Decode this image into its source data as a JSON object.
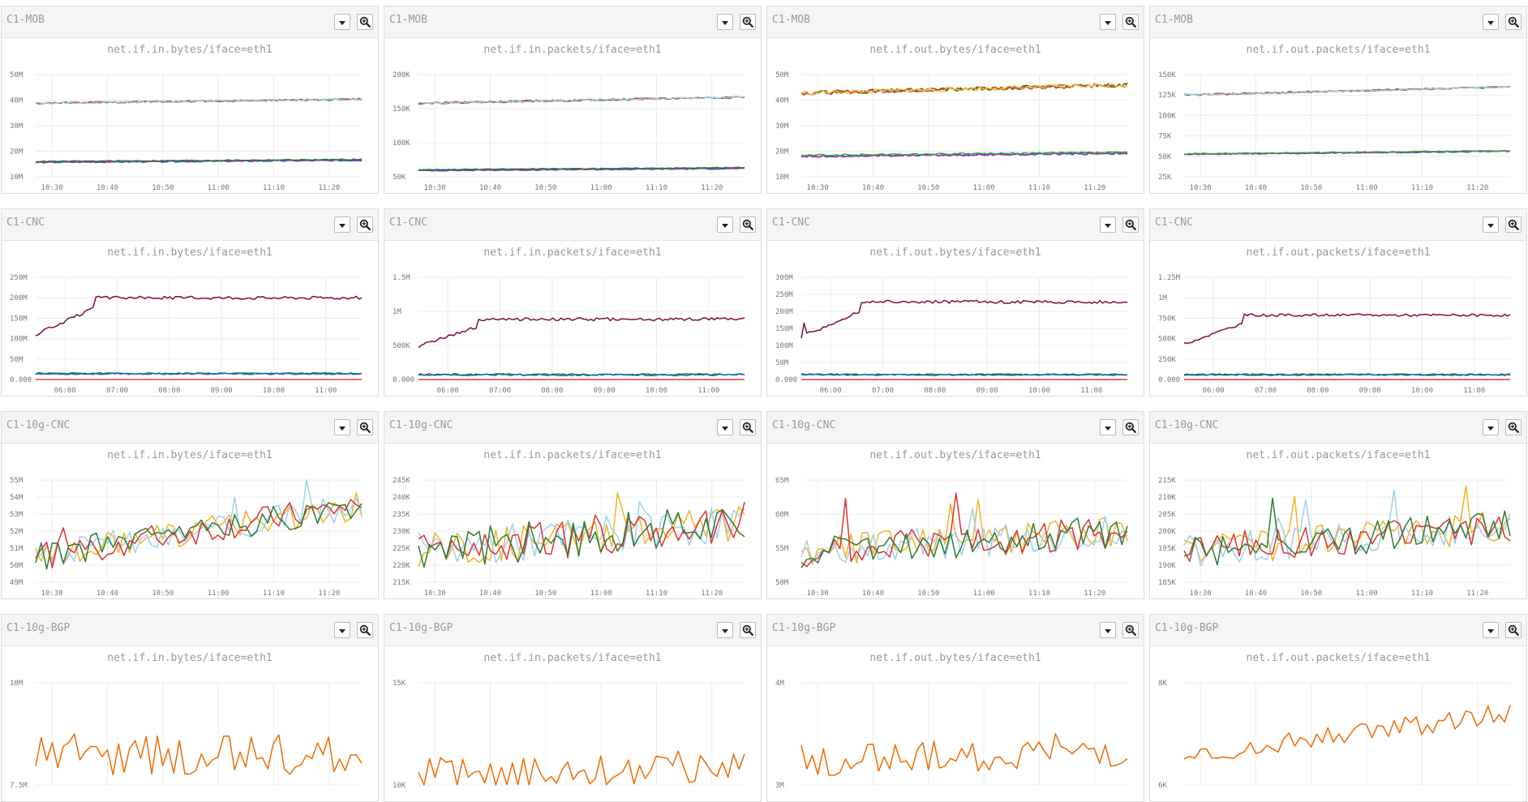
{
  "ticks_a": {
    "x": [
      "10:30",
      "10:40",
      "10:50",
      "11:00",
      "11:10",
      "11:20"
    ],
    "x_pos": [
      0.05,
      0.22,
      0.39,
      0.56,
      0.73,
      0.9
    ]
  },
  "ticks_b": {
    "x": [
      "06:00",
      "07:00",
      "08:00",
      "09:00",
      "10:00",
      "11:00"
    ],
    "x_pos": [
      0.09,
      0.25,
      0.41,
      0.57,
      0.73,
      0.89
    ]
  },
  "rows": [
    {
      "name": "C1-MOB",
      "ticks": "a",
      "panels": [
        {
          "metric": "net.if.in.bytes/iface=eth1",
          "y": [
            "50M",
            "40M",
            "30M",
            "20M",
            "10M"
          ],
          "series": [
            {
              "color": "#2e7d32",
              "base": 0.72,
              "trend": 0.04,
              "noise": 0.008,
              "seed": 11,
              "type": "flat"
            },
            {
              "color": "#d33",
              "base": 0.72,
              "trend": 0.04,
              "noise": 0.008,
              "seed": 12,
              "type": "flat"
            },
            {
              "color": "#9ed0f0",
              "base": 0.72,
              "trend": 0.04,
              "noise": 0.01,
              "seed": 13,
              "type": "flat"
            },
            {
              "color": "#1565c0",
              "base": 0.14,
              "trend": 0.02,
              "noise": 0.006,
              "seed": 14,
              "type": "flat"
            },
            {
              "color": "#c020c0",
              "base": 0.145,
              "trend": 0.02,
              "noise": 0.006,
              "seed": 15,
              "type": "flat"
            },
            {
              "color": "#2e7d32",
              "base": 0.15,
              "trend": 0.02,
              "noise": 0.005,
              "seed": 16,
              "type": "flat"
            }
          ]
        },
        {
          "metric": "net.if.in.packets/iface=eth1",
          "y": [
            "200K",
            "150K",
            "100K",
            "50K"
          ],
          "series": [
            {
              "color": "#2e7d32",
              "base": 0.72,
              "trend": 0.06,
              "noise": 0.008,
              "seed": 21,
              "type": "flat"
            },
            {
              "color": "#d33",
              "base": 0.72,
              "trend": 0.06,
              "noise": 0.01,
              "seed": 22,
              "type": "flat"
            },
            {
              "color": "#9ed0f0",
              "base": 0.72,
              "trend": 0.06,
              "noise": 0.008,
              "seed": 23,
              "type": "flat"
            },
            {
              "color": "#1565c0",
              "base": 0.06,
              "trend": 0.02,
              "noise": 0.005,
              "seed": 24,
              "type": "flat"
            },
            {
              "color": "#c020c0",
              "base": 0.065,
              "trend": 0.02,
              "noise": 0.005,
              "seed": 25,
              "type": "flat"
            },
            {
              "color": "#2e7d32",
              "base": 0.07,
              "trend": 0.02,
              "noise": 0.004,
              "seed": 26,
              "type": "flat"
            }
          ]
        },
        {
          "metric": "net.if.out.bytes/iface=eth1",
          "y": [
            "50M",
            "40M",
            "30M",
            "20M",
            "10M"
          ],
          "series": [
            {
              "color": "#2e7d32",
              "base": 0.82,
              "trend": 0.08,
              "noise": 0.02,
              "seed": 31,
              "type": "flat"
            },
            {
              "color": "#d33",
              "base": 0.82,
              "trend": 0.08,
              "noise": 0.02,
              "seed": 32,
              "type": "flat"
            },
            {
              "color": "#f0c030",
              "base": 0.82,
              "trend": 0.08,
              "noise": 0.02,
              "seed": 33,
              "type": "flat"
            },
            {
              "color": "#1565c0",
              "base": 0.2,
              "trend": 0.03,
              "noise": 0.01,
              "seed": 34,
              "type": "flat"
            },
            {
              "color": "#c020c0",
              "base": 0.2,
              "trend": 0.03,
              "noise": 0.01,
              "seed": 35,
              "type": "flat"
            },
            {
              "color": "#3a3",
              "base": 0.21,
              "trend": 0.03,
              "noise": 0.008,
              "seed": 36,
              "type": "flat"
            }
          ]
        },
        {
          "metric": "net.if.out.packets/iface=eth1",
          "y": [
            "150K",
            "125K",
            "100K",
            "75K",
            "50K",
            "25K"
          ],
          "series": [
            {
              "color": "#2e7d32",
              "base": 0.8,
              "trend": 0.08,
              "noise": 0.008,
              "seed": 41,
              "type": "flat"
            },
            {
              "color": "#d33",
              "base": 0.8,
              "trend": 0.08,
              "noise": 0.008,
              "seed": 42,
              "type": "flat"
            },
            {
              "color": "#9ed0f0",
              "base": 0.8,
              "trend": 0.08,
              "noise": 0.008,
              "seed": 43,
              "type": "flat"
            },
            {
              "color": "#1565c0",
              "base": 0.22,
              "trend": 0.03,
              "noise": 0.006,
              "seed": 44,
              "type": "flat"
            },
            {
              "color": "#c020c0",
              "base": 0.22,
              "trend": 0.03,
              "noise": 0.006,
              "seed": 45,
              "type": "flat"
            },
            {
              "color": "#3a3",
              "base": 0.225,
              "trend": 0.03,
              "noise": 0.005,
              "seed": 46,
              "type": "flat"
            }
          ]
        }
      ]
    },
    {
      "name": "C1-CNC",
      "ticks": "b",
      "panels": [
        {
          "metric": "net.if.in.bytes/iface=eth1",
          "y": [
            "250M",
            "200M",
            "150M",
            "100M",
            "50M",
            "0.000"
          ],
          "series": [
            {
              "color": "#7b1040",
              "base": 0.8,
              "noise": 0.015,
              "seed": 51,
              "type": "ramp"
            },
            {
              "color": "#2e7d32",
              "base": 0.06,
              "noise": 0.006,
              "seed": 52,
              "type": "flat"
            },
            {
              "color": "#1565c0",
              "base": 0.055,
              "noise": 0.006,
              "seed": 53,
              "type": "flat"
            },
            {
              "color": "#e53935",
              "base": 0.0,
              "noise": 0.0,
              "seed": 54,
              "type": "flat"
            }
          ]
        },
        {
          "metric": "net.if.in.packets/iface=eth1",
          "y": [
            "1.5M",
            "1M",
            "500K",
            "0.000"
          ],
          "series": [
            {
              "color": "#7b1040",
              "base": 0.59,
              "noise": 0.015,
              "seed": 61,
              "type": "ramp"
            },
            {
              "color": "#2e7d32",
              "base": 0.05,
              "noise": 0.008,
              "seed": 62,
              "type": "flat"
            },
            {
              "color": "#1565c0",
              "base": 0.045,
              "noise": 0.008,
              "seed": 63,
              "type": "flat"
            },
            {
              "color": "#e53935",
              "base": 0.0,
              "noise": 0.0,
              "seed": 64,
              "type": "flat"
            }
          ]
        },
        {
          "metric": "net.if.out.bytes/iface=eth1",
          "y": [
            "300M",
            "250M",
            "200M",
            "150M",
            "100M",
            "50M",
            "0.000"
          ],
          "series": [
            {
              "color": "#7b1040",
              "base": 0.76,
              "noise": 0.015,
              "seed": 71,
              "type": "ramp"
            },
            {
              "color": "#2e7d32",
              "base": 0.05,
              "noise": 0.006,
              "seed": 72,
              "type": "flat"
            },
            {
              "color": "#1565c0",
              "base": 0.045,
              "noise": 0.006,
              "seed": 73,
              "type": "flat"
            },
            {
              "color": "#e53935",
              "base": 0.0,
              "noise": 0.0,
              "seed": 74,
              "type": "flat"
            }
          ]
        },
        {
          "metric": "net.if.out.packets/iface=eth1",
          "y": [
            "1.25M",
            "1M",
            "750K",
            "500K",
            "250K",
            "0.000"
          ],
          "series": [
            {
              "color": "#7b1040",
              "base": 0.63,
              "noise": 0.012,
              "seed": 81,
              "type": "ramp"
            },
            {
              "color": "#2e7d32",
              "base": 0.05,
              "noise": 0.006,
              "seed": 82,
              "type": "flat"
            },
            {
              "color": "#1565c0",
              "base": 0.045,
              "noise": 0.006,
              "seed": 83,
              "type": "flat"
            },
            {
              "color": "#e53935",
              "base": 0.0,
              "noise": 0.0,
              "seed": 84,
              "type": "flat"
            }
          ]
        }
      ]
    },
    {
      "name": "C1-10g-CNC",
      "ticks": "a",
      "panels": [
        {
          "metric": "net.if.in.bytes/iface=eth1",
          "y": [
            "55M",
            "54M",
            "53M",
            "52M",
            "51M",
            "50M",
            "49M"
          ],
          "series": [
            {
              "color": "#f0b429",
              "base": 0.25,
              "trend": 0.5,
              "noise": 0.07,
              "seed": 91,
              "type": "noisy"
            },
            {
              "color": "#9ed0f0",
              "base": 0.25,
              "trend": 0.5,
              "noise": 0.07,
              "seed": 92,
              "type": "noisy"
            },
            {
              "color": "#d33",
              "base": 0.25,
              "trend": 0.5,
              "noise": 0.07,
              "seed": 93,
              "type": "noisy"
            },
            {
              "color": "#2e7d32",
              "base": 0.25,
              "trend": 0.5,
              "noise": 0.07,
              "seed": 94,
              "type": "noisy"
            }
          ]
        },
        {
          "metric": "net.if.in.packets/iface=eth1",
          "y": [
            "245K",
            "240K",
            "235K",
            "230K",
            "225K",
            "220K",
            "215K"
          ],
          "series": [
            {
              "color": "#f0b429",
              "base": 0.3,
              "trend": 0.3,
              "noise": 0.1,
              "seed": 101,
              "type": "noisy"
            },
            {
              "color": "#9ed0f0",
              "base": 0.3,
              "trend": 0.3,
              "noise": 0.1,
              "seed": 102,
              "type": "noisy"
            },
            {
              "color": "#d33",
              "base": 0.3,
              "trend": 0.3,
              "noise": 0.1,
              "seed": 103,
              "type": "noisy"
            },
            {
              "color": "#2e7d32",
              "base": 0.3,
              "trend": 0.3,
              "noise": 0.1,
              "seed": 104,
              "type": "noisy"
            }
          ]
        },
        {
          "metric": "net.if.out.bytes/iface=eth1",
          "y": [
            "65M",
            "60M",
            "55M",
            "50M"
          ],
          "series": [
            {
              "color": "#f0b429",
              "base": 0.3,
              "trend": 0.2,
              "noise": 0.08,
              "seed": 111,
              "type": "noisy"
            },
            {
              "color": "#9ed0f0",
              "base": 0.3,
              "trend": 0.2,
              "noise": 0.08,
              "seed": 112,
              "type": "noisy"
            },
            {
              "color": "#d33",
              "base": 0.3,
              "trend": 0.2,
              "noise": 0.08,
              "seed": 113,
              "type": "noisy"
            },
            {
              "color": "#2e7d32",
              "base": 0.3,
              "trend": 0.2,
              "noise": 0.08,
              "seed": 114,
              "type": "noisy"
            }
          ]
        },
        {
          "metric": "net.if.out.packets/iface=eth1",
          "y": [
            "215K",
            "210K",
            "205K",
            "200K",
            "195K",
            "190K",
            "185K"
          ],
          "series": [
            {
              "color": "#f0b429",
              "base": 0.3,
              "trend": 0.25,
              "noise": 0.08,
              "seed": 121,
              "type": "noisy"
            },
            {
              "color": "#9ed0f0",
              "base": 0.3,
              "trend": 0.25,
              "noise": 0.08,
              "seed": 122,
              "type": "noisy"
            },
            {
              "color": "#d33",
              "base": 0.3,
              "trend": 0.25,
              "noise": 0.08,
              "seed": 123,
              "type": "noisy"
            },
            {
              "color": "#2e7d32",
              "base": 0.3,
              "trend": 0.25,
              "noise": 0.08,
              "seed": 124,
              "type": "noisy"
            }
          ]
        }
      ]
    },
    {
      "name": "C1-10g-BGP",
      "ticks": "none",
      "panels": [
        {
          "metric": "net.if.in.bytes/iface=eth1",
          "y": [
            "10M",
            "7.5M"
          ],
          "series": [
            {
              "color": "#ef6c00",
              "base": 0.3,
              "trend": 0.0,
              "noise": 0.1,
              "seed": 131,
              "type": "noisy"
            }
          ]
        },
        {
          "metric": "net.if.in.packets/iface=eth1",
          "y": [
            "15K",
            "10K"
          ],
          "series": [
            {
              "color": "#ef6c00",
              "base": 0.1,
              "trend": 0.1,
              "noise": 0.08,
              "seed": 141,
              "type": "noisy"
            }
          ]
        },
        {
          "metric": "net.if.out.bytes/iface=eth1",
          "y": [
            "4M",
            "3M"
          ],
          "series": [
            {
              "color": "#ef6c00",
              "base": 0.25,
              "trend": 0.05,
              "noise": 0.08,
              "seed": 151,
              "type": "noisy"
            }
          ]
        },
        {
          "metric": "net.if.out.packets/iface=eth1",
          "y": [
            "8K",
            "6K"
          ],
          "series": [
            {
              "color": "#ef6c00",
              "base": 0.3,
              "trend": 0.4,
              "noise": 0.05,
              "seed": 161,
              "type": "noisy"
            }
          ]
        }
      ]
    }
  ]
}
